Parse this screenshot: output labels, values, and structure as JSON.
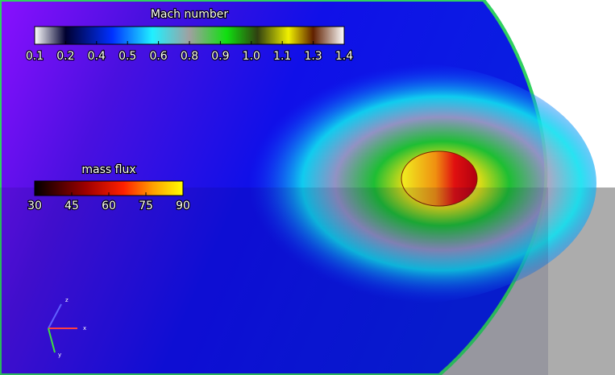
{
  "colorbars": [
    {
      "title": "Mach number",
      "range": [
        0.1,
        1.4
      ],
      "ticks": [
        0.1,
        {
          "value": 0.23,
          "label": "0.2"
        },
        {
          "value": 0.36,
          "label": "0.4"
        },
        {
          "value": 0.49,
          "label": "0.5"
        },
        {
          "value": 0.62,
          "label": "0.6"
        },
        {
          "value": 0.75,
          "label": "0.8"
        },
        {
          "value": 0.88,
          "label": "0.9"
        },
        {
          "value": 1.01,
          "label": "1.0"
        },
        {
          "value": 1.14,
          "label": "1.1"
        },
        {
          "value": 1.27,
          "label": "1.3"
        },
        1.4
      ]
    },
    {
      "title": "mass flux",
      "range": [
        30,
        90
      ],
      "ticks": [
        30,
        45,
        60,
        75,
        90
      ]
    }
  ],
  "axis_labels": [
    "z",
    "x",
    "y"
  ]
}
